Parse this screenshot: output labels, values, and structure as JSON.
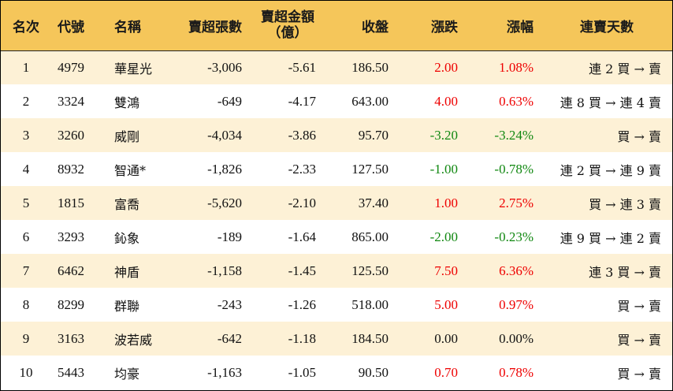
{
  "headers": {
    "rank": "名次",
    "code": "代號",
    "name": "名稱",
    "net_sell_sheets": "賣超張數",
    "net_sell_amount_line1": "賣超金額",
    "net_sell_amount_line2": "（億）",
    "close": "收盤",
    "change": "漲跌",
    "change_pct": "漲幅",
    "streak": "連賣天數"
  },
  "colors": {
    "header_bg": "#f5c65a",
    "odd_row_bg": "#fdf1d6",
    "up": "#ee0000",
    "down": "#118811"
  },
  "rows": [
    {
      "rank": "1",
      "code": "4979",
      "name": "華星光",
      "sheets": "-3,006",
      "amount": "-5.61",
      "close": "186.50",
      "change": "2.00",
      "pct": "1.08%",
      "dir": "up",
      "streak": "連 2 買 → 賣"
    },
    {
      "rank": "2",
      "code": "3324",
      "name": "雙鴻",
      "sheets": "-649",
      "amount": "-4.17",
      "close": "643.00",
      "change": "4.00",
      "pct": "0.63%",
      "dir": "up",
      "streak": "連 8 買 → 連 4 賣"
    },
    {
      "rank": "3",
      "code": "3260",
      "name": "威剛",
      "sheets": "-4,034",
      "amount": "-3.86",
      "close": "95.70",
      "change": "-3.20",
      "pct": "-3.24%",
      "dir": "down",
      "streak": "買 → 賣"
    },
    {
      "rank": "4",
      "code": "8932",
      "name": "智通*",
      "sheets": "-1,826",
      "amount": "-2.33",
      "close": "127.50",
      "change": "-1.00",
      "pct": "-0.78%",
      "dir": "down",
      "streak": "連 2 買 → 連 9 賣"
    },
    {
      "rank": "5",
      "code": "1815",
      "name": "富喬",
      "sheets": "-5,620",
      "amount": "-2.10",
      "close": "37.40",
      "change": "1.00",
      "pct": "2.75%",
      "dir": "up",
      "streak": "買 → 連 3 賣"
    },
    {
      "rank": "6",
      "code": "3293",
      "name": "鈊象",
      "sheets": "-189",
      "amount": "-1.64",
      "close": "865.00",
      "change": "-2.00",
      "pct": "-0.23%",
      "dir": "down",
      "streak": "連 9 買 → 連 2 賣"
    },
    {
      "rank": "7",
      "code": "6462",
      "name": "神盾",
      "sheets": "-1,158",
      "amount": "-1.45",
      "close": "125.50",
      "change": "7.50",
      "pct": "6.36%",
      "dir": "up",
      "streak": "連 3 買 → 賣"
    },
    {
      "rank": "8",
      "code": "8299",
      "name": "群聯",
      "sheets": "-243",
      "amount": "-1.26",
      "close": "518.00",
      "change": "5.00",
      "pct": "0.97%",
      "dir": "up",
      "streak": "買 → 賣"
    },
    {
      "rank": "9",
      "code": "3163",
      "name": "波若威",
      "sheets": "-642",
      "amount": "-1.18",
      "close": "184.50",
      "change": "0.00",
      "pct": "0.00%",
      "dir": "flat",
      "streak": "買 → 賣"
    },
    {
      "rank": "10",
      "code": "5443",
      "name": "均豪",
      "sheets": "-1,163",
      "amount": "-1.05",
      "close": "90.50",
      "change": "0.70",
      "pct": "0.78%",
      "dir": "up",
      "streak": "買 → 賣"
    }
  ]
}
